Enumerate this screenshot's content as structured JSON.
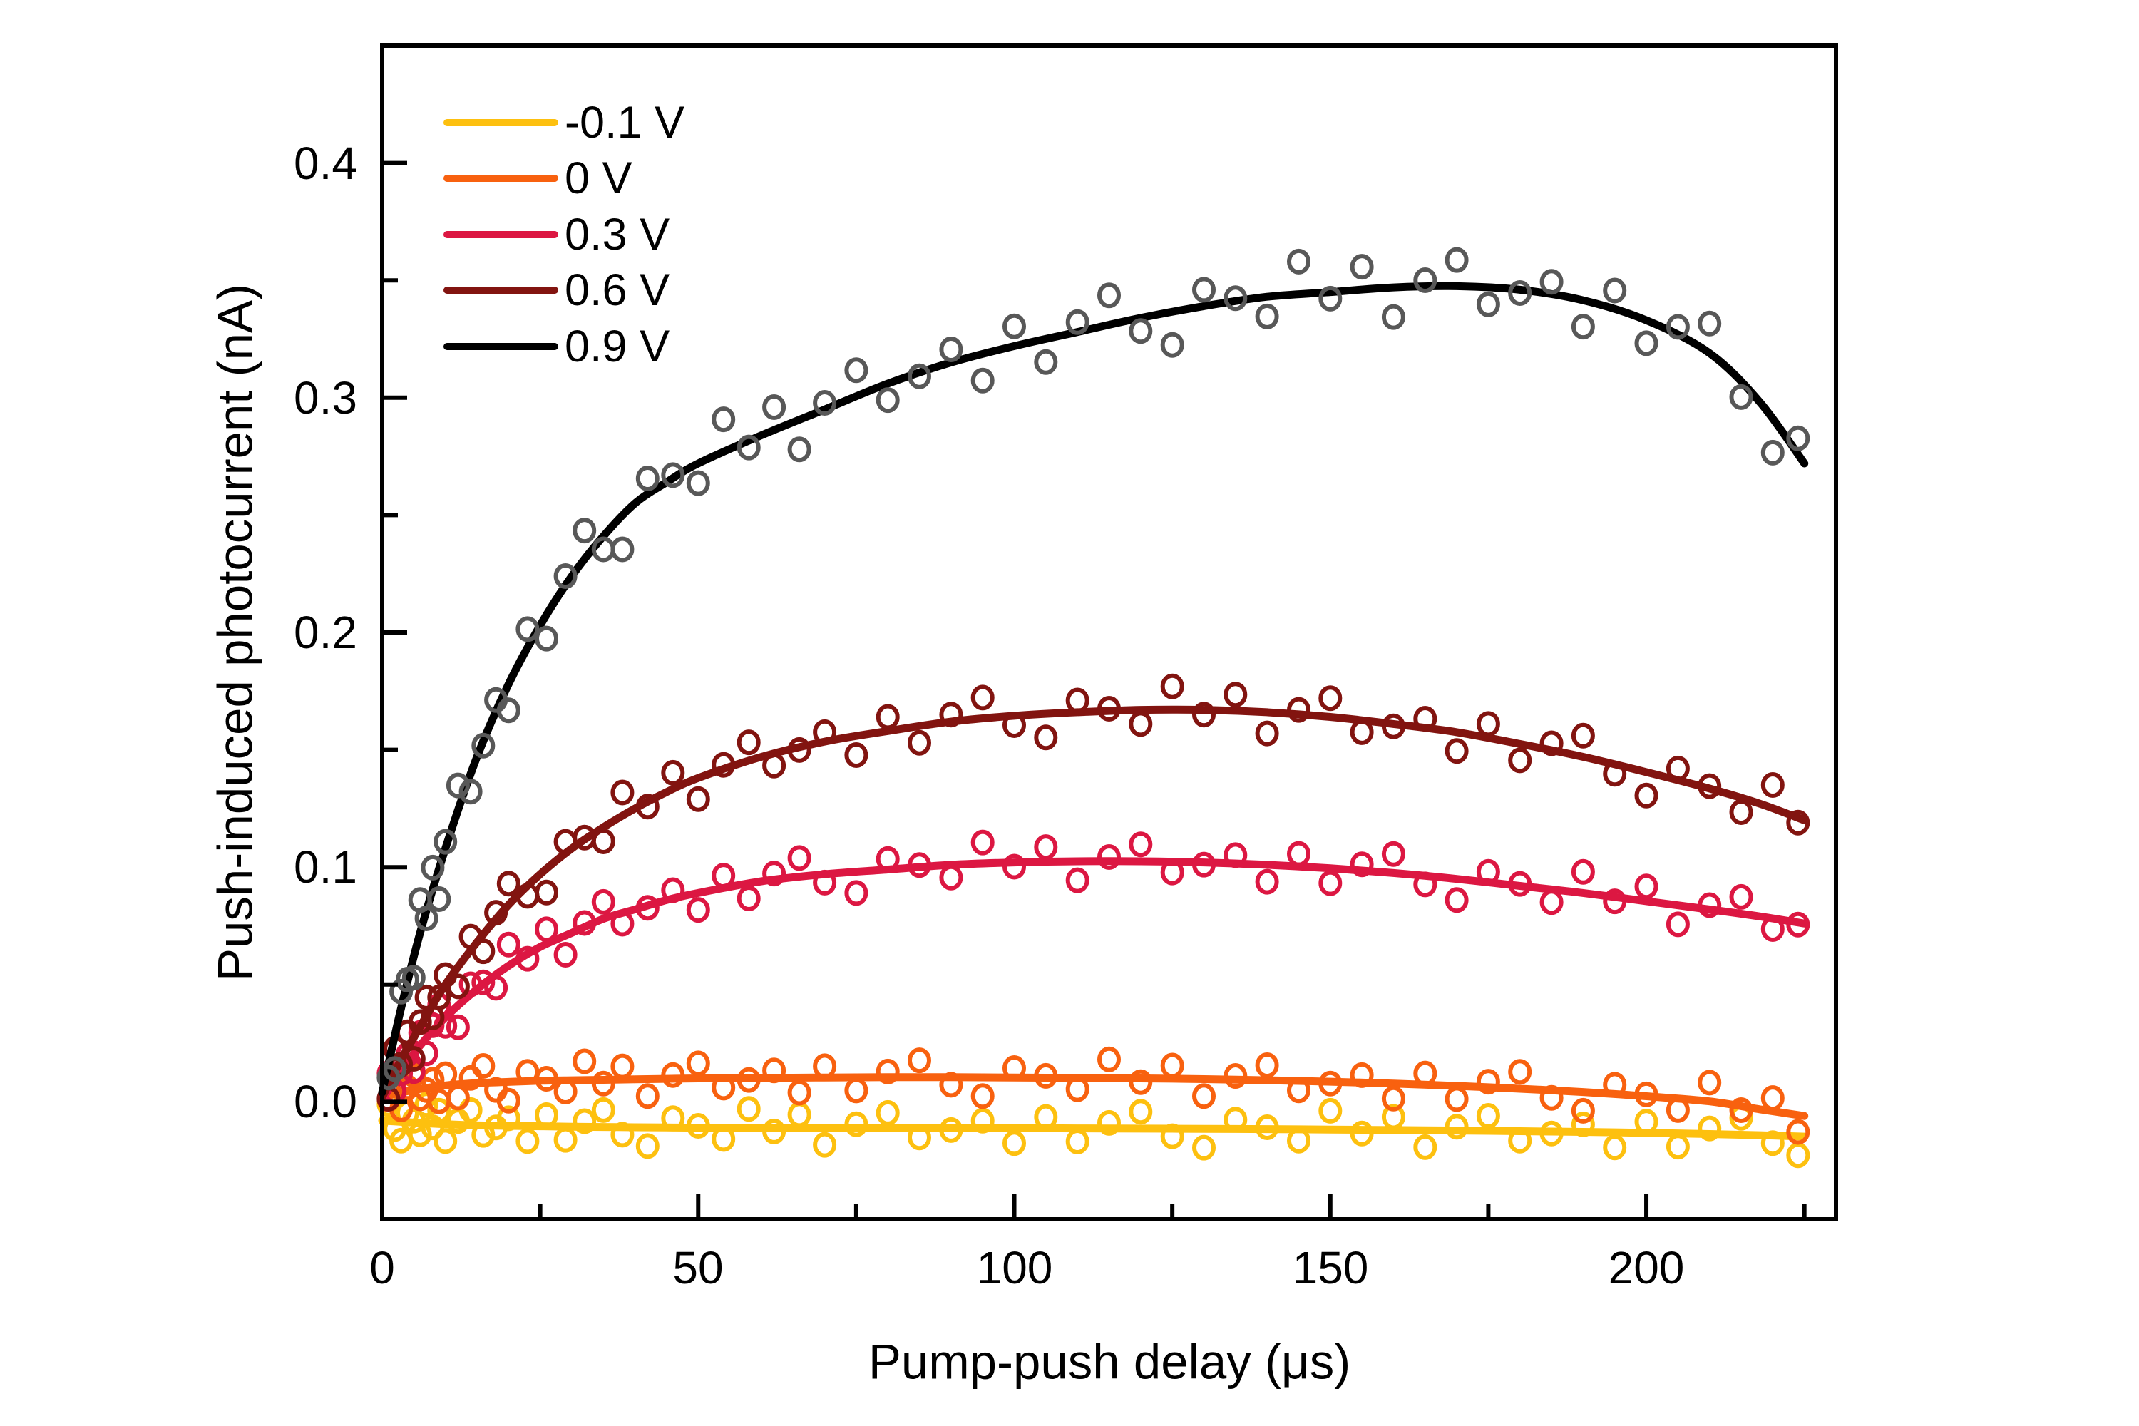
{
  "figure": {
    "background": "#ffffff",
    "frame_color": "#000000"
  },
  "chart_data": {
    "type": "scatter",
    "title": "",
    "xlabel": "Pump-push delay (μs)",
    "ylabel": "Push-induced photocurrent (nA)",
    "x_unit": "μs",
    "y_unit": "nA",
    "xlim": [
      0,
      230
    ],
    "ylim": [
      -0.05,
      0.45
    ],
    "grid": "off",
    "legend_position": "top-left-inside",
    "x_major_ticks": [
      0,
      50,
      100,
      150,
      200
    ],
    "x_major_tick_labels": [
      "0",
      "50",
      "100",
      "150",
      "200"
    ],
    "x_minor_ticks": [
      25,
      75,
      125,
      175,
      225
    ],
    "y_major_ticks": [
      0.0,
      0.1,
      0.2,
      0.3,
      0.4
    ],
    "y_major_tick_labels": [
      "0.0",
      "0.1",
      "0.2",
      "0.3",
      "0.4"
    ],
    "y_minor_ticks": [
      0.05,
      0.15,
      0.25,
      0.35
    ],
    "fit_x": [
      0,
      3,
      6,
      10,
      15,
      20,
      25,
      30,
      35,
      40,
      45,
      50,
      60,
      70,
      80,
      90,
      100,
      110,
      120,
      130,
      140,
      150,
      160,
      170,
      180,
      190,
      200,
      210,
      218,
      225
    ],
    "scatter_x": [
      1,
      2,
      3,
      4,
      5,
      6,
      7,
      8,
      9,
      10,
      12,
      14,
      16,
      18,
      20,
      23,
      26,
      29,
      32,
      35,
      38,
      42,
      46,
      50,
      54,
      58,
      62,
      66,
      70,
      75,
      80,
      85,
      90,
      95,
      100,
      105,
      110,
      115,
      120,
      125,
      130,
      135,
      140,
      145,
      150,
      155,
      160,
      165,
      170,
      175,
      180,
      185,
      190,
      195,
      200,
      205,
      210,
      215,
      220,
      224
    ],
    "noise_table": [
      0.006,
      -0.007,
      0.003,
      0.009,
      -0.004,
      -0.01,
      0.005,
      0.001,
      -0.006,
      0.01,
      -0.002,
      0.007,
      -0.009,
      0.002,
      0.008,
      -0.005,
      -0.001,
      0.004,
      -0.008
    ],
    "series": [
      {
        "label": "-0.1 V",
        "color": "#FDC00F",
        "marker_color": "#FDC00F",
        "fit_y": [
          -0.008,
          -0.0085,
          -0.009,
          -0.0095,
          -0.01,
          -0.0102,
          -0.0104,
          -0.0106,
          -0.0107,
          -0.0108,
          -0.0109,
          -0.011,
          -0.011,
          -0.0111,
          -0.0111,
          -0.0112,
          -0.0112,
          -0.0113,
          -0.0114,
          -0.0115,
          -0.0116,
          -0.0118,
          -0.012,
          -0.0122,
          -0.0125,
          -0.0128,
          -0.0132,
          -0.0137,
          -0.0142,
          -0.0148
        ],
        "noise_scale": 0.8,
        "noise_offset": 3
      },
      {
        "label": "0 V",
        "color": "#F8610F",
        "marker_color": "#F8610F",
        "fit_y": [
          0.002,
          0.004,
          0.0055,
          0.007,
          0.008,
          0.0085,
          0.009,
          0.0092,
          0.0094,
          0.0096,
          0.0098,
          0.01,
          0.0102,
          0.0104,
          0.0105,
          0.0105,
          0.0104,
          0.0102,
          0.01,
          0.0097,
          0.0092,
          0.0086,
          0.0078,
          0.0068,
          0.0056,
          0.0042,
          0.0024,
          0.0002,
          -0.0032,
          -0.006
        ],
        "noise_scale": 0.8,
        "noise_offset": 10
      },
      {
        "label": "0.3 V",
        "color": "#DC1742",
        "marker_color": "#DC1742",
        "fit_y": [
          0.001,
          0.013,
          0.024,
          0.036,
          0.048,
          0.058,
          0.066,
          0.072,
          0.078,
          0.082,
          0.086,
          0.089,
          0.094,
          0.097,
          0.099,
          0.101,
          0.102,
          0.1025,
          0.1025,
          0.102,
          0.101,
          0.0995,
          0.0975,
          0.095,
          0.092,
          0.089,
          0.0855,
          0.082,
          0.079,
          0.076
        ],
        "noise_scale": 0.9,
        "noise_offset": 14
      },
      {
        "label": "0.6 V",
        "color": "#821410",
        "marker_color": "#821410",
        "fit_y": [
          0.002,
          0.018,
          0.032,
          0.05,
          0.068,
          0.084,
          0.097,
          0.108,
          0.117,
          0.125,
          0.132,
          0.138,
          0.147,
          0.1535,
          0.158,
          0.162,
          0.1645,
          0.166,
          0.167,
          0.167,
          0.166,
          0.164,
          0.161,
          0.1575,
          0.1525,
          0.147,
          0.1405,
          0.1335,
          0.127,
          0.12
        ],
        "noise_scale": 1.0,
        "noise_offset": 8
      },
      {
        "label": "0.9 V",
        "color": "#000000",
        "marker_color": "#585858",
        "fit_y": [
          0.004,
          0.04,
          0.072,
          0.108,
          0.147,
          0.178,
          0.203,
          0.224,
          0.241,
          0.255,
          0.264,
          0.272,
          0.284,
          0.295,
          0.306,
          0.315,
          0.322,
          0.328,
          0.334,
          0.339,
          0.343,
          0.345,
          0.347,
          0.3475,
          0.346,
          0.3415,
          0.333,
          0.319,
          0.298,
          0.272
        ],
        "noise_scale": 1.4,
        "noise_offset": 4
      }
    ]
  }
}
